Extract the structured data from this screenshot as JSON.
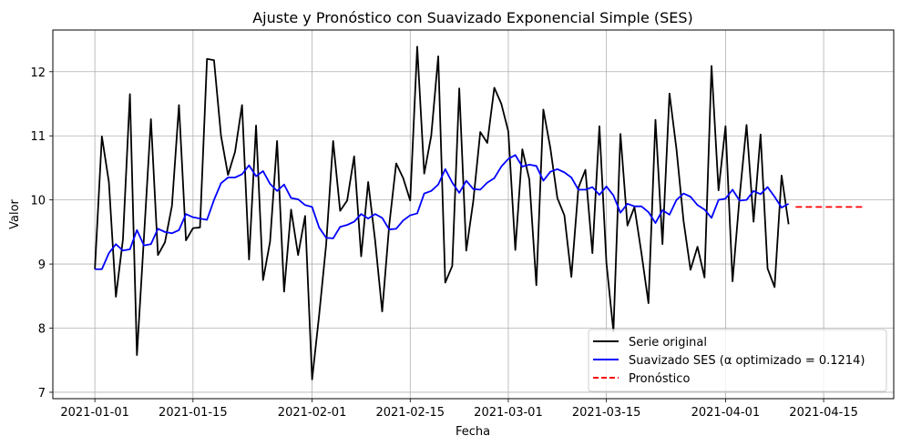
{
  "chart_data": {
    "type": "line",
    "title": "Ajuste y Pronóstico con Suavizado Exponencial Simple (SES)",
    "xlabel": "Fecha",
    "ylabel": "Valor",
    "xlim": [
      "2020-12-26",
      "2021-04-25"
    ],
    "ylim": [
      6.9,
      12.65
    ],
    "x_ticks": [
      "2021-01-01",
      "2021-01-15",
      "2021-02-01",
      "2021-02-15",
      "2021-03-01",
      "2021-03-15",
      "2021-04-01",
      "2021-04-15"
    ],
    "y_ticks": [
      7,
      8,
      9,
      10,
      11,
      12
    ],
    "grid": true,
    "legend_position": "lower right",
    "x_start": "2021-01-01",
    "x_step": "1 day",
    "series": [
      {
        "name": "Serie original",
        "color": "#000000",
        "style": "solid",
        "values": [
          8.92,
          10.99,
          10.28,
          8.49,
          9.38,
          11.65,
          7.58,
          9.41,
          11.26,
          9.14,
          9.34,
          9.91,
          11.48,
          9.37,
          9.56,
          9.57,
          12.2,
          12.18,
          11.0,
          10.39,
          10.75,
          11.48,
          9.07,
          11.16,
          8.75,
          9.35,
          10.92,
          8.57,
          9.85,
          9.14,
          9.75,
          7.2,
          8.2,
          9.3,
          10.92,
          9.83,
          9.99,
          10.68,
          9.12,
          10.28,
          9.36,
          8.26,
          9.6,
          10.57,
          10.34,
          9.99,
          12.39,
          10.41,
          11.0,
          12.24,
          8.71,
          8.97,
          11.74,
          9.21,
          9.98,
          11.06,
          10.89,
          11.75,
          11.5,
          11.07,
          9.22,
          10.79,
          10.32,
          8.67,
          11.41,
          10.81,
          10.03,
          9.76,
          8.8,
          10.19,
          10.47,
          9.17,
          11.15,
          9.02,
          7.95,
          11.03,
          9.6,
          9.89,
          9.17,
          8.39,
          11.25,
          9.31,
          11.66,
          10.79,
          9.68,
          8.91,
          9.27,
          8.79,
          12.09,
          10.15,
          11.15,
          8.73,
          10.04,
          11.17,
          9.66,
          11.02,
          8.93,
          8.64,
          10.38,
          9.62
        ]
      },
      {
        "name": "Suavizado SES (α optimizado = 0.1214)",
        "color": "#0000ff",
        "style": "solid",
        "values": [
          8.92,
          8.92,
          9.17,
          9.31,
          9.21,
          9.23,
          9.53,
          9.29,
          9.31,
          9.55,
          9.5,
          9.48,
          9.53,
          9.78,
          9.73,
          9.71,
          9.69,
          10.0,
          10.26,
          10.35,
          10.35,
          10.4,
          10.54,
          10.37,
          10.45,
          10.25,
          10.14,
          10.24,
          10.03,
          10.01,
          9.92,
          9.89,
          9.57,
          9.41,
          9.4,
          9.58,
          9.61,
          9.66,
          9.78,
          9.71,
          9.78,
          9.72,
          9.54,
          9.55,
          9.68,
          9.76,
          9.79,
          10.1,
          10.14,
          10.24,
          10.48,
          10.27,
          10.11,
          10.3,
          10.17,
          10.16,
          10.27,
          10.34,
          10.52,
          10.64,
          10.7,
          10.52,
          10.55,
          10.53,
          10.3,
          10.44,
          10.48,
          10.43,
          10.35,
          10.16,
          10.16,
          10.2,
          10.08,
          10.21,
          10.07,
          9.8,
          9.94,
          9.9,
          9.9,
          9.81,
          9.64,
          9.84,
          9.77,
          10.0,
          10.1,
          10.05,
          9.92,
          9.85,
          9.72,
          10.0,
          10.02,
          10.16,
          9.99,
          10.0,
          10.14,
          10.09,
          10.2,
          10.05,
          9.88,
          9.94
        ]
      },
      {
        "name": "Pronóstico",
        "color": "#ff0000",
        "style": "dashed",
        "x_start": "2021-04-11",
        "values": [
          9.89,
          9.89,
          9.89,
          9.89,
          9.89,
          9.89,
          9.89,
          9.89,
          9.89,
          9.89,
          9.89
        ]
      }
    ]
  }
}
